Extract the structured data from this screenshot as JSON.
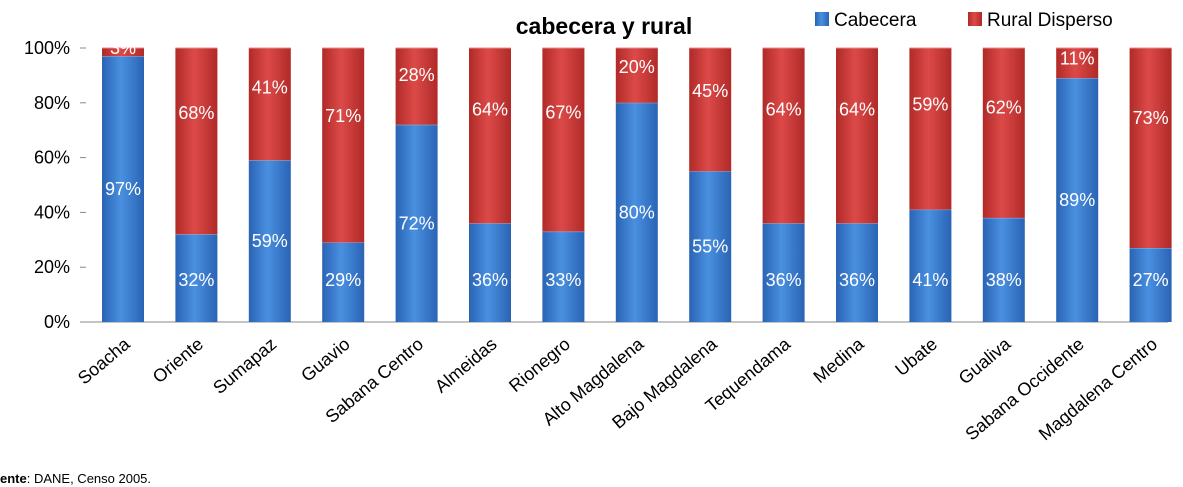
{
  "chart_data": {
    "type": "bar",
    "stacked": true,
    "title_visible": "cabecera y rural",
    "categories": [
      "Soacha",
      "Oriente",
      "Sumapaz",
      "Guavio",
      "Sabana Centro",
      "Almeidas",
      "Rionegro",
      "Alto Magdalena",
      "Bajo Magdalena",
      "Tequendama",
      "Medina",
      "Ubate",
      "Gualiva",
      "Sabana Occidente",
      "Magdalena Centro"
    ],
    "series": [
      {
        "name": "Cabecera",
        "color": "#3c7fd4",
        "values": [
          97,
          32,
          59,
          29,
          72,
          36,
          33,
          80,
          55,
          36,
          36,
          41,
          38,
          89,
          27
        ],
        "labels": [
          "97%",
          "32%",
          "59%",
          "29%",
          "72%",
          "36%",
          "33%",
          "80%",
          "55%",
          "36%",
          "36%",
          "41%",
          "38%",
          "89%",
          "27%"
        ]
      },
      {
        "name": "Rural Disperso",
        "color": "#cc3a38",
        "values": [
          3,
          68,
          41,
          71,
          28,
          64,
          67,
          20,
          45,
          64,
          64,
          59,
          62,
          11,
          73
        ],
        "labels": [
          "3%",
          "68%",
          "41%",
          "71%",
          "28%",
          "64%",
          "67%",
          "20%",
          "45%",
          "64%",
          "64%",
          "59%",
          "62%",
          "11%",
          "73%"
        ]
      }
    ],
    "yticks": [
      "0%",
      "20%",
      "40%",
      "60%",
      "80%",
      "100%"
    ],
    "ylim": [
      0,
      100
    ],
    "legend_position": "top-right"
  },
  "source": {
    "label": "ente",
    "text": ": DANE, Censo 2005."
  }
}
